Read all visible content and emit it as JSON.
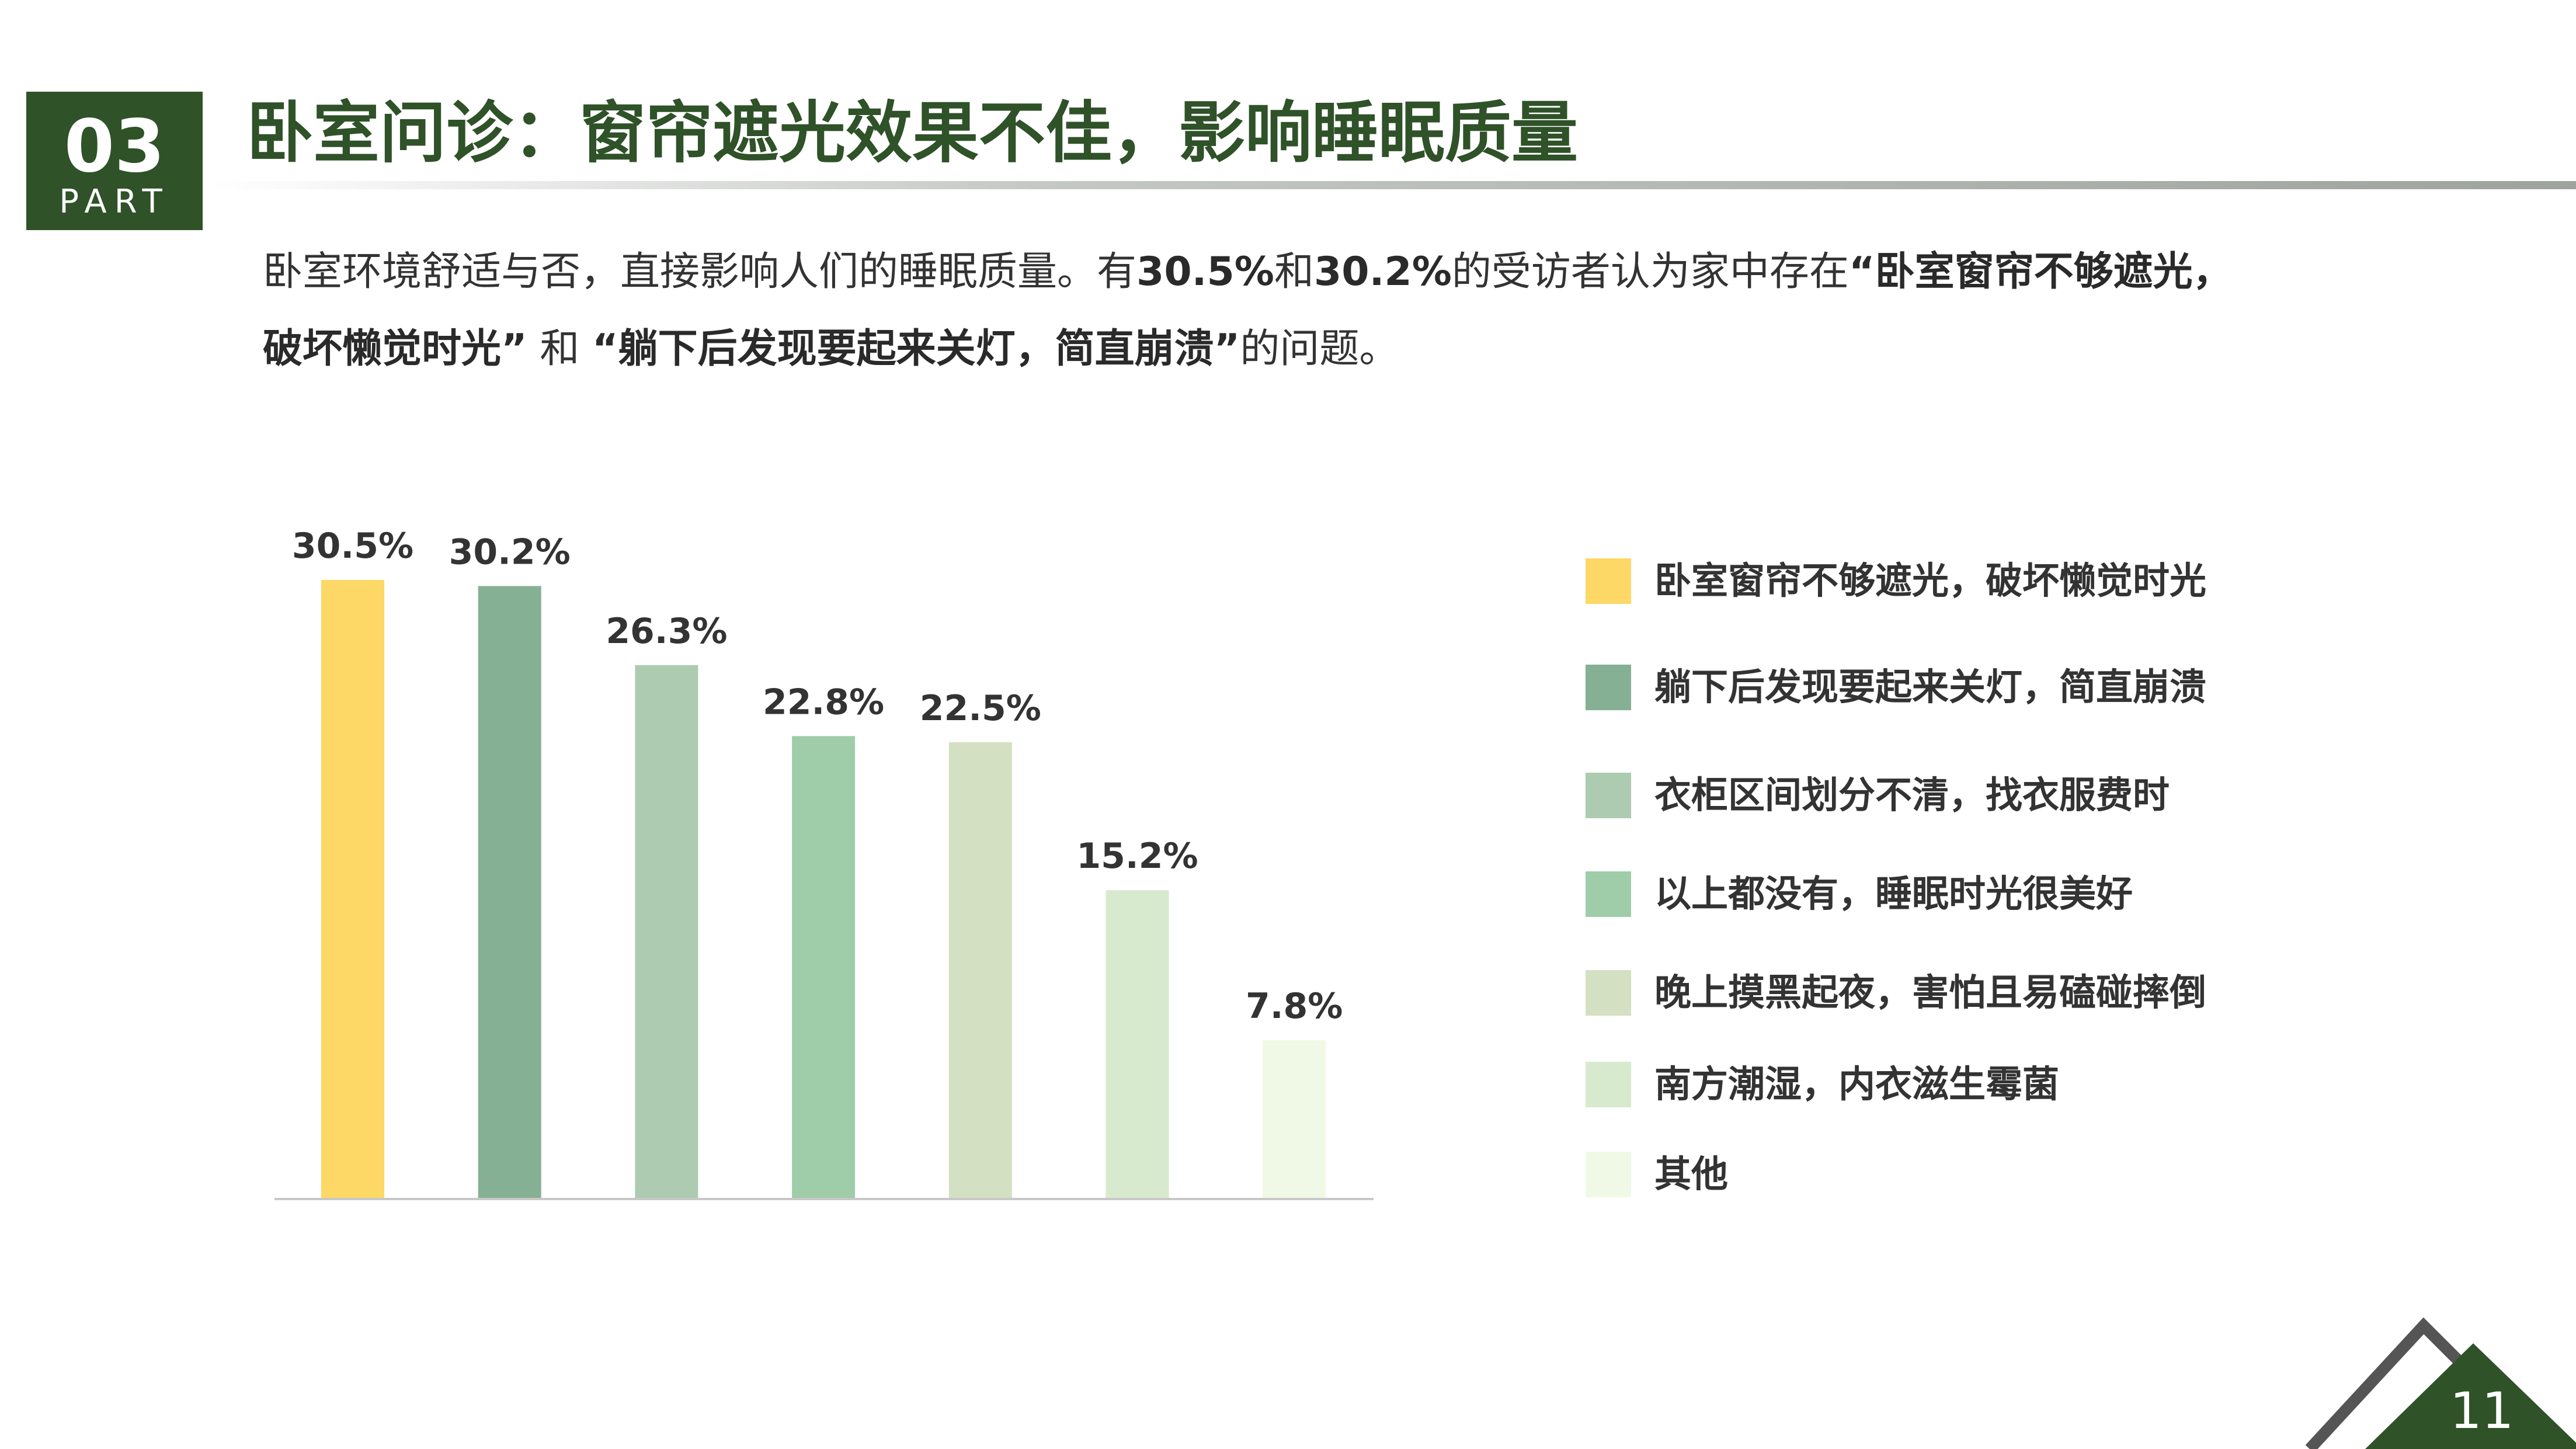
{
  "badge": {
    "number": "03",
    "label": "PART"
  },
  "title": "卧室问诊：窗帘遮光效果不佳，影响睡眠质量",
  "intro": {
    "t1": "卧室环境舒适与否，直接影响人们的睡眠质量。有",
    "b1": "30.5%",
    "t2": "和",
    "b2": "30.2%",
    "t3": "的受访者认为家中存在",
    "b3": "“卧室窗帘不够遮光，",
    "b4": "破坏懒觉时光”",
    "t4": " 和 ",
    "b5": "“躺下后发现要起来关灯，简直崩溃”",
    "t5": "的问题。"
  },
  "chart_data": {
    "type": "bar",
    "categories": [
      "卧室窗帘不够遮光，破坏懒觉时光",
      "躺下后发现要起来关灯，简直崩溃",
      "衣柜区间划分不清，找衣服费时",
      "以上都没有，睡眠时光很美好",
      "晚上摸黑起夜，害怕且易磕碰摔倒",
      "南方潮湿，内衣滋生霉菌",
      "其他"
    ],
    "values": [
      30.5,
      30.2,
      26.3,
      22.8,
      22.5,
      15.2,
      7.8
    ],
    "value_labels": [
      "30.5%",
      "30.2%",
      "26.3%",
      "22.8%",
      "22.5%",
      "15.2%",
      "7.8%"
    ],
    "colors": [
      "#fdd866",
      "#86b093",
      "#adcbb0",
      "#9fcca9",
      "#d3e0c2",
      "#d8eace",
      "#f0f9e5"
    ],
    "ylim": [
      0,
      30.5
    ],
    "legend": "right",
    "grid": false
  },
  "page_number": "11",
  "colors": {
    "brand_green": "#2f5228",
    "corner_gray": "#555555"
  }
}
